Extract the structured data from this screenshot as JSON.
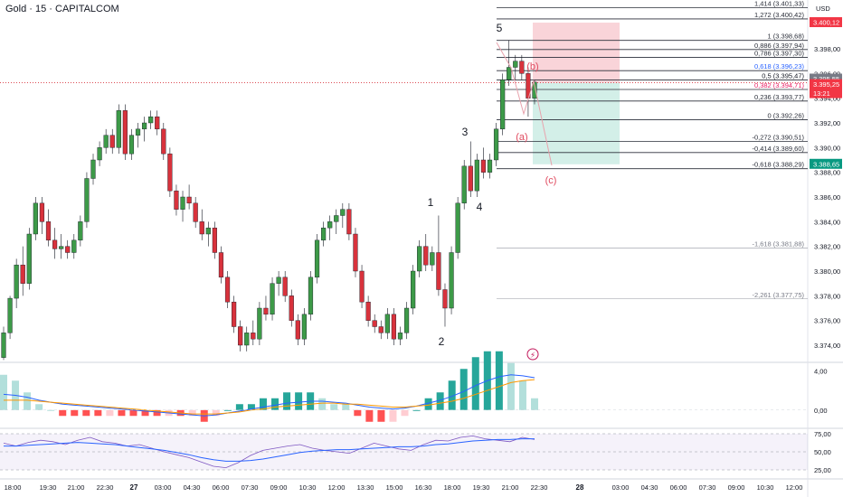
{
  "symbol_title": "Gold · 15 · CAPITALCOM",
  "currency": "USD",
  "colors": {
    "up": "#3d9a48",
    "down": "#d8323c",
    "macd_line": "#2962ff",
    "signal_line": "#ff9800",
    "rsi_line": "#7e57c2",
    "rsi_ma": "#2962ff"
  },
  "price_axis": {
    "ticks": [
      "3.398,00",
      "3.396,00",
      "3.394,00",
      "3.392,00",
      "3.390,00",
      "3.388,00",
      "3.386,00",
      "3.384,00",
      "3.382,00",
      "3.380,00",
      "3.378,00",
      "3.376,00",
      "3.374,00"
    ],
    "markers": [
      {
        "label": "3.400,12",
        "kind": "stop"
      },
      {
        "label": "3.395,55",
        "kind": "last"
      },
      {
        "label": "3.395,25",
        "kind": "current"
      },
      {
        "label": "13:21",
        "kind": "countdown"
      },
      {
        "label": "3.388,65",
        "kind": "target"
      }
    ]
  },
  "macd_axis": [
    "4,00",
    "0,00"
  ],
  "rsi_axis": [
    "75,00",
    "50,00",
    "25,00"
  ],
  "time_axis": [
    "18:00",
    "19:30",
    "21:00",
    "22:30",
    "27",
    "03:00",
    "04:30",
    "06:00",
    "07:30",
    "09:00",
    "10:30",
    "12:00",
    "13:30",
    "15:00",
    "16:30",
    "18:00",
    "19:30",
    "21:00",
    "22:30",
    "28",
    "03:00",
    "04:30",
    "06:00",
    "07:30",
    "09:00",
    "10:30",
    "12:00"
  ],
  "fib_levels": [
    {
      "label": "1,414 (3.401,33)",
      "value": 3401.33
    },
    {
      "label": "1,272 (3.400,42)",
      "value": 3400.42
    },
    {
      "label": "1 (3.398,68)",
      "value": 3398.68
    },
    {
      "label": "0,886 (3.397,94)",
      "value": 3397.94
    },
    {
      "label": "0,786 (3.397,30)",
      "value": 3397.3
    },
    {
      "label": "0,618 (3.396,23)",
      "value": 3396.23
    },
    {
      "label": "0,5 (3.395,47)",
      "value": 3395.47
    },
    {
      "label": "0,382 (3.394,71)",
      "value": 3394.71
    },
    {
      "label": "0,236 (3.393,77)",
      "value": 3393.77
    },
    {
      "label": "0 (3.392,26)",
      "value": 3392.26
    },
    {
      "label": "-0,272 (3.390,51)",
      "value": 3390.51
    },
    {
      "label": "-0,414 (3.389,60)",
      "value": 3389.6
    },
    {
      "label": "-0,618 (3.388,29)",
      "value": 3388.29
    },
    {
      "label": "-1,618 (3.381,88)",
      "value": 3381.88
    },
    {
      "label": "-2,261 (3.377,75)",
      "value": 3377.75
    }
  ],
  "wave_labels": [
    "5",
    "3",
    "1",
    "4",
    "2",
    "(a)",
    "(b)",
    "(c)"
  ],
  "chart_data": {
    "type": "candlestick",
    "symbol": "Gold",
    "interval": "15",
    "ylim": [
      3372.8,
      3402.0
    ],
    "candles": [
      [
        3373.0,
        3375.5,
        3372.8,
        3375.0
      ],
      [
        3375.0,
        3378.0,
        3374.5,
        3377.8
      ],
      [
        3377.8,
        3381.0,
        3377.0,
        3380.5
      ],
      [
        3380.5,
        3382.0,
        3378.0,
        3379.0
      ],
      [
        3379.0,
        3383.5,
        3378.5,
        3383.0
      ],
      [
        3383.0,
        3386.0,
        3382.5,
        3385.5
      ],
      [
        3385.5,
        3386.0,
        3383.0,
        3384.0
      ],
      [
        3384.0,
        3385.0,
        3382.0,
        3382.5
      ],
      [
        3382.5,
        3383.5,
        3381.0,
        3381.8
      ],
      [
        3381.8,
        3383.0,
        3381.0,
        3382.0
      ],
      [
        3382.0,
        3382.5,
        3381.0,
        3381.5
      ],
      [
        3381.5,
        3383.0,
        3381.0,
        3382.5
      ],
      [
        3382.5,
        3384.5,
        3382.0,
        3384.0
      ],
      [
        3384.0,
        3388.0,
        3383.5,
        3387.5
      ],
      [
        3387.5,
        3389.5,
        3387.0,
        3389.0
      ],
      [
        3389.0,
        3390.5,
        3388.5,
        3390.0
      ],
      [
        3390.0,
        3391.5,
        3389.5,
        3391.0
      ],
      [
        3391.0,
        3391.5,
        3389.5,
        3390.0
      ],
      [
        3390.0,
        3393.5,
        3389.5,
        3393.0
      ],
      [
        3393.0,
        3393.5,
        3389.0,
        3389.5
      ],
      [
        3389.5,
        3391.5,
        3389.0,
        3391.0
      ],
      [
        3391.0,
        3392.0,
        3390.0,
        3391.5
      ],
      [
        3391.5,
        3392.5,
        3390.5,
        3392.0
      ],
      [
        3392.0,
        3393.0,
        3391.5,
        3392.5
      ],
      [
        3392.5,
        3393.0,
        3391.0,
        3391.5
      ],
      [
        3391.5,
        3392.0,
        3389.0,
        3389.5
      ],
      [
        3389.5,
        3390.0,
        3386.0,
        3386.5
      ],
      [
        3386.5,
        3387.0,
        3384.5,
        3385.0
      ],
      [
        3385.0,
        3386.5,
        3384.0,
        3386.0
      ],
      [
        3386.0,
        3387.0,
        3385.0,
        3385.5
      ],
      [
        3385.5,
        3386.0,
        3383.5,
        3384.0
      ],
      [
        3384.0,
        3385.0,
        3382.5,
        3383.0
      ],
      [
        3383.0,
        3384.0,
        3382.0,
        3383.5
      ],
      [
        3383.5,
        3384.0,
        3381.0,
        3381.5
      ],
      [
        3381.5,
        3382.0,
        3379.0,
        3379.5
      ],
      [
        3379.5,
        3380.0,
        3377.0,
        3377.5
      ],
      [
        3377.5,
        3378.0,
        3375.0,
        3375.5
      ],
      [
        3375.5,
        3376.0,
        3373.5,
        3374.0
      ],
      [
        3374.0,
        3375.5,
        3373.5,
        3375.0
      ],
      [
        3375.0,
        3376.0,
        3374.0,
        3374.5
      ],
      [
        3374.5,
        3377.5,
        3374.0,
        3377.0
      ],
      [
        3377.0,
        3378.0,
        3376.0,
        3376.5
      ],
      [
        3376.5,
        3379.5,
        3376.0,
        3379.0
      ],
      [
        3379.0,
        3380.0,
        3378.0,
        3379.5
      ],
      [
        3379.5,
        3380.0,
        3377.5,
        3378.0
      ],
      [
        3378.0,
        3378.5,
        3375.5,
        3376.0
      ],
      [
        3376.0,
        3376.5,
        3374.0,
        3374.5
      ],
      [
        3374.5,
        3377.0,
        3374.0,
        3376.5
      ],
      [
        3376.5,
        3380.0,
        3376.0,
        3379.5
      ],
      [
        3379.5,
        3383.0,
        3379.0,
        3382.5
      ],
      [
        3382.5,
        3384.0,
        3382.0,
        3383.5
      ],
      [
        3383.5,
        3384.5,
        3382.5,
        3384.0
      ],
      [
        3384.0,
        3385.0,
        3383.0,
        3384.5
      ],
      [
        3384.5,
        3385.5,
        3383.5,
        3385.0
      ],
      [
        3385.0,
        3385.5,
        3382.5,
        3383.0
      ],
      [
        3383.0,
        3383.5,
        3379.5,
        3380.0
      ],
      [
        3380.0,
        3380.5,
        3377.0,
        3377.5
      ],
      [
        3377.5,
        3378.0,
        3375.5,
        3376.0
      ],
      [
        3376.0,
        3376.5,
        3375.0,
        3375.5
      ],
      [
        3375.5,
        3376.0,
        3374.5,
        3375.0
      ],
      [
        3375.0,
        3377.0,
        3374.5,
        3376.5
      ],
      [
        3376.5,
        3377.0,
        3374.0,
        3374.5
      ],
      [
        3374.5,
        3375.5,
        3374.0,
        3375.0
      ],
      [
        3375.0,
        3377.5,
        3374.5,
        3377.0
      ],
      [
        3377.0,
        3380.5,
        3376.5,
        3380.0
      ],
      [
        3380.0,
        3382.5,
        3379.5,
        3382.0
      ],
      [
        3382.0,
        3383.0,
        3380.0,
        3380.5
      ],
      [
        3380.5,
        3382.0,
        3380.0,
        3381.5
      ],
      [
        3381.5,
        3384.5,
        3378.0,
        3378.5
      ],
      [
        3378.5,
        3379.0,
        3375.5,
        3377.0
      ],
      [
        3377.0,
        3382.0,
        3376.5,
        3381.5
      ],
      [
        3381.5,
        3386.0,
        3381.0,
        3385.5
      ],
      [
        3385.5,
        3389.0,
        3385.0,
        3388.5
      ],
      [
        3388.5,
        3390.5,
        3386.0,
        3386.5
      ],
      [
        3386.5,
        3389.5,
        3386.0,
        3389.0
      ],
      [
        3389.0,
        3390.0,
        3387.5,
        3388.0
      ],
      [
        3388.0,
        3389.5,
        3387.5,
        3389.0
      ],
      [
        3389.0,
        3392.0,
        3388.5,
        3391.5
      ],
      [
        3391.5,
        3396.0,
        3391.0,
        3395.5
      ],
      [
        3395.5,
        3398.7,
        3395.0,
        3396.5
      ],
      [
        3396.5,
        3397.5,
        3395.5,
        3397.0
      ],
      [
        3397.0,
        3397.5,
        3395.5,
        3396.0
      ],
      [
        3396.0,
        3396.5,
        3392.5,
        3394.0
      ],
      [
        3394.0,
        3395.5,
        3393.5,
        3395.3
      ]
    ],
    "macd": [
      1.6,
      1.5,
      1.3,
      1.0,
      0.8,
      0.6,
      0.5,
      0.4,
      0.3,
      0.2,
      0.1,
      0.0,
      -0.1,
      -0.2,
      -0.3,
      -0.4,
      -0.5,
      -0.6,
      -0.5,
      -0.3,
      -0.1,
      0.1,
      0.3,
      0.5,
      0.7,
      0.8,
      0.9,
      0.9,
      0.8,
      0.7,
      0.5,
      0.3,
      0.2,
      0.1,
      0.2,
      0.4,
      0.7,
      1.0,
      1.4,
      1.9,
      2.5,
      3.0,
      3.4,
      3.6,
      3.5,
      3.3
    ],
    "signal": [
      1.0,
      1.0,
      1.0,
      0.9,
      0.8,
      0.7,
      0.6,
      0.5,
      0.4,
      0.3,
      0.2,
      0.1,
      0.0,
      -0.1,
      -0.2,
      -0.3,
      -0.4,
      -0.4,
      -0.4,
      -0.3,
      -0.2,
      0.0,
      0.1,
      0.3,
      0.4,
      0.5,
      0.6,
      0.7,
      0.7,
      0.6,
      0.6,
      0.5,
      0.4,
      0.3,
      0.3,
      0.4,
      0.5,
      0.7,
      0.9,
      1.2,
      1.6,
      2.0,
      2.4,
      2.8,
      3.0,
      3.1
    ],
    "rsi": [
      62,
      58,
      63,
      66,
      64,
      60,
      66,
      70,
      64,
      62,
      58,
      60,
      55,
      50,
      46,
      42,
      36,
      30,
      28,
      35,
      45,
      52,
      55,
      58,
      60,
      55,
      52,
      50,
      48,
      55,
      62,
      58,
      54,
      52,
      60,
      66,
      65,
      70,
      72,
      68,
      66,
      64,
      70,
      67
    ],
    "rsi_ma": [
      58,
      58,
      59,
      60,
      61,
      62,
      63,
      62,
      61,
      60,
      58,
      56,
      54,
      52,
      49,
      46,
      42,
      39,
      37,
      37,
      38,
      40,
      43,
      46,
      49,
      51,
      52,
      53,
      53,
      54,
      55,
      56,
      57,
      57,
      58,
      60,
      61,
      63,
      65,
      66,
      67,
      67,
      68,
      68
    ],
    "macd_ylim": [
      -1.5,
      4.5
    ],
    "rsi_ylim": [
      15,
      80
    ]
  }
}
